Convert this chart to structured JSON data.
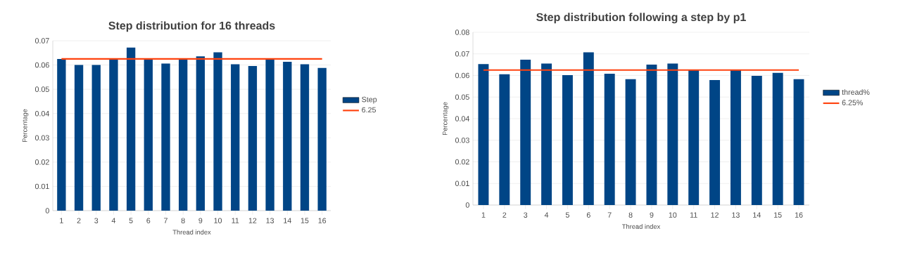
{
  "chart_data": [
    {
      "type": "bar",
      "title": "Step distribution for 16 threads",
      "xlabel": "Thread index",
      "ylabel": "Percentage",
      "categories": [
        "1",
        "2",
        "3",
        "4",
        "5",
        "6",
        "7",
        "8",
        "9",
        "10",
        "11",
        "12",
        "13",
        "14",
        "15",
        "16"
      ],
      "series": [
        {
          "name": "Step",
          "color": "#004586",
          "values": [
            0.0625,
            0.06,
            0.06,
            0.0622,
            0.0672,
            0.0622,
            0.0606,
            0.0622,
            0.0636,
            0.0652,
            0.0603,
            0.0596,
            0.0622,
            0.0613,
            0.0603,
            0.0588
          ]
        },
        {
          "name": "6.25",
          "color": "#ff420e",
          "type": "line",
          "values": [
            0.0625,
            0.0625,
            0.0625,
            0.0625,
            0.0625,
            0.0625,
            0.0625,
            0.0625,
            0.0625,
            0.0625,
            0.0625,
            0.0625,
            0.0625,
            0.0625,
            0.0625,
            0.0625
          ]
        }
      ],
      "ylim": [
        0,
        0.07
      ],
      "yticks": [
        0,
        0.01,
        0.02,
        0.03,
        0.04,
        0.05,
        0.06,
        0.07
      ],
      "grid": "y",
      "legend": "right"
    },
    {
      "type": "bar",
      "title": "Step distribution following a step by p1",
      "xlabel": "Thread index",
      "ylabel": "Percentage",
      "categories": [
        "1",
        "2",
        "3",
        "4",
        "5",
        "6",
        "7",
        "8",
        "9",
        "10",
        "11",
        "12",
        "13",
        "14",
        "15",
        "16"
      ],
      "series": [
        {
          "name": "thread%",
          "color": "#004586",
          "values": [
            0.0653,
            0.0606,
            0.0673,
            0.0655,
            0.0602,
            0.0707,
            0.0608,
            0.0583,
            0.065,
            0.0655,
            0.0625,
            0.0579,
            0.0625,
            0.0598,
            0.0612,
            0.0583
          ]
        },
        {
          "name": "6.25%",
          "color": "#ff420e",
          "type": "line",
          "values": [
            0.0625,
            0.0625,
            0.0625,
            0.0625,
            0.0625,
            0.0625,
            0.0625,
            0.0625,
            0.0625,
            0.0625,
            0.0625,
            0.0625,
            0.0625,
            0.0625,
            0.0625,
            0.0625
          ]
        }
      ],
      "ylim": [
        0,
        0.08
      ],
      "yticks": [
        0,
        0.01,
        0.02,
        0.03,
        0.04,
        0.05,
        0.06,
        0.07,
        0.08
      ],
      "grid": "y",
      "legend": "right"
    }
  ]
}
